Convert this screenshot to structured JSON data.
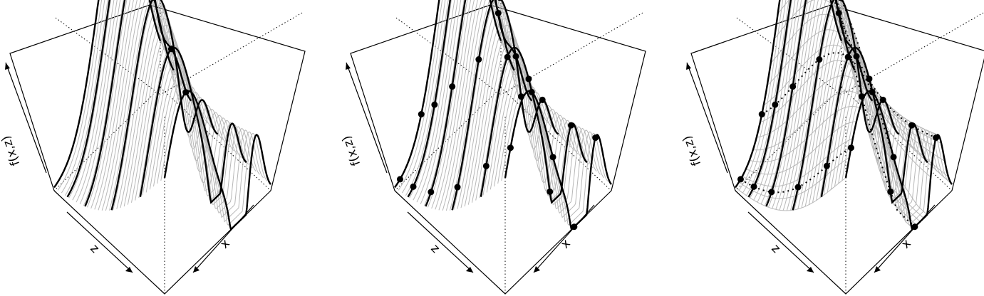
{
  "panels": [
    {
      "id": "left",
      "axis_labels": {
        "x": "x",
        "z": "z",
        "f": "f(x,z)"
      },
      "highlighted_curves": "x-slices",
      "point_style": "top-ridge"
    },
    {
      "id": "middle",
      "axis_labels": {
        "x": "x",
        "z": "z",
        "f": "f(x,z)"
      },
      "highlighted_curves": "x-slices",
      "point_style": "grid"
    },
    {
      "id": "right",
      "axis_labels": {
        "x": "x",
        "z": "z",
        "f": "f(x,z)"
      },
      "highlighted_curves": "x-slices-and-dotted-z-slices",
      "point_style": "grid"
    }
  ],
  "colors": {
    "frame": "#000000",
    "thin_curve": "#b8b8b8",
    "thick_curve": "#000000",
    "surface_fill": "#c8c8c8",
    "point": "#000000"
  }
}
